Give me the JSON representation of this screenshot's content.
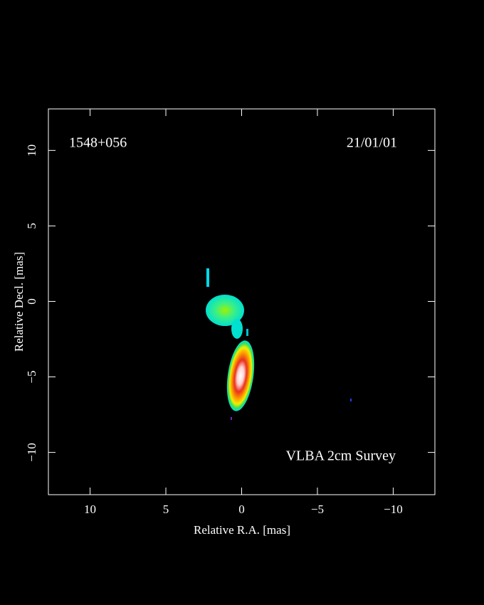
{
  "chart_data": {
    "type": "image",
    "title": "1548+056",
    "date": "21/01/01",
    "annotation": "VLBA 2cm Survey",
    "x_label": "Relative R.A. [mas]",
    "y_label": "Relative Decl. [mas]",
    "xlim": [
      12.75,
      -12.75
    ],
    "ylim": [
      -12.8,
      12.75
    ],
    "xticks": [
      10,
      5,
      0,
      {
        "value": -5,
        "label": "−5"
      },
      {
        "value": -10,
        "label": "−10"
      }
    ],
    "yticks": [
      {
        "value": -10,
        "label": "−10"
      },
      {
        "value": -5,
        "label": "−5"
      },
      0,
      5,
      10
    ]
  }
}
